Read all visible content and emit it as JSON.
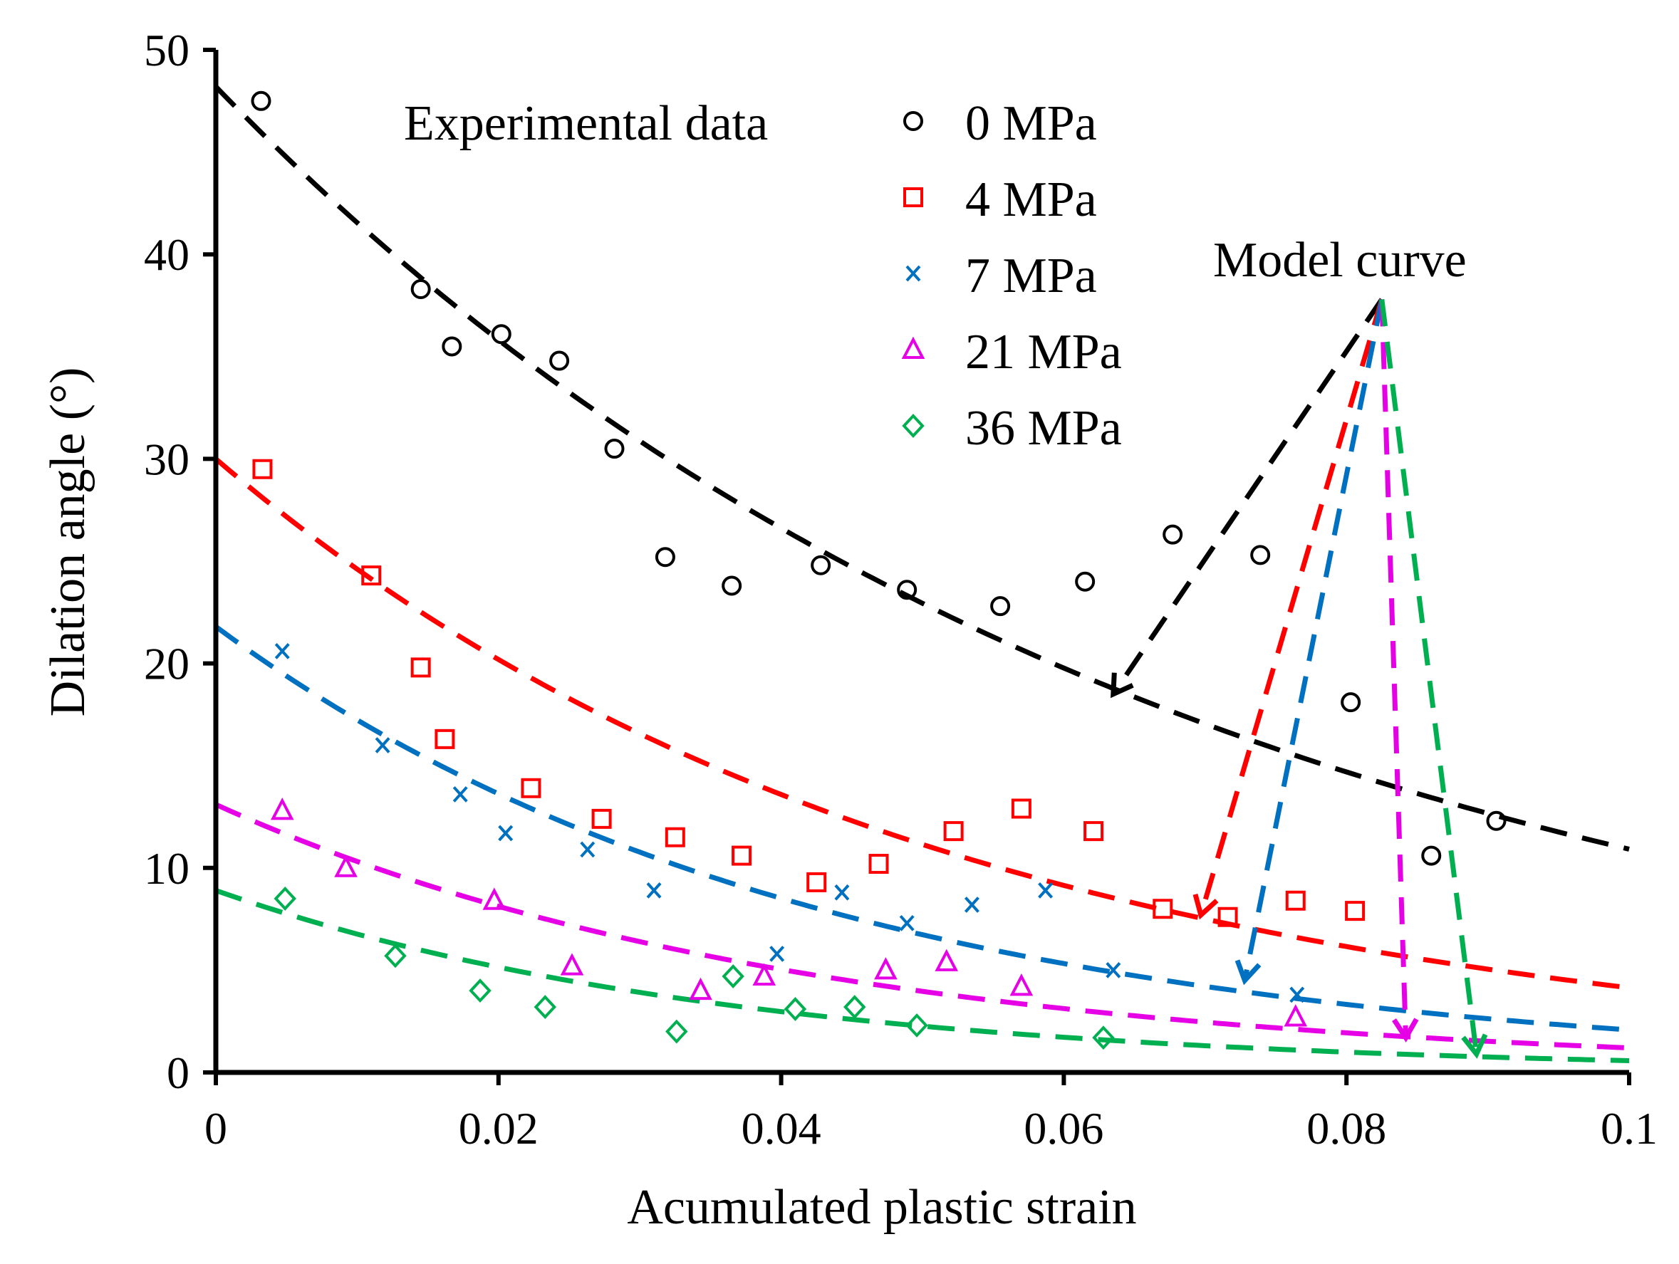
{
  "chart_data": {
    "type": "scatter",
    "title": "",
    "xlabel": "Acumulated plastic strain",
    "ylabel": "Dilation angle (°)",
    "xlim": [
      0,
      0.1
    ],
    "ylim": [
      0,
      50
    ],
    "xticks": [
      0,
      0.02,
      0.04,
      0.06,
      0.08,
      0.1
    ],
    "xtick_labels": [
      "0",
      "0.02",
      "0.04",
      "0.06",
      "0.08",
      "0.1"
    ],
    "yticks": [
      0,
      10,
      20,
      30,
      40,
      50
    ],
    "ytick_labels": [
      "0",
      "10",
      "20",
      "30",
      "40",
      "50"
    ],
    "legend_heading": "Experimental data",
    "series": [
      {
        "name": "0 MPa",
        "color": "#000000",
        "marker": "circle",
        "points": [
          [
            0.0032,
            47.5
          ],
          [
            0.0145,
            38.3
          ],
          [
            0.0167,
            35.5
          ],
          [
            0.0202,
            36.1
          ],
          [
            0.0243,
            34.8
          ],
          [
            0.0282,
            30.5
          ],
          [
            0.0318,
            25.2
          ],
          [
            0.0365,
            23.8
          ],
          [
            0.0428,
            24.8
          ],
          [
            0.0489,
            23.6
          ],
          [
            0.0555,
            22.8
          ],
          [
            0.0615,
            24.0
          ],
          [
            0.0677,
            26.3
          ],
          [
            0.0739,
            25.3
          ],
          [
            0.0803,
            18.1
          ],
          [
            0.086,
            10.6
          ],
          [
            0.0906,
            12.3
          ]
        ],
        "model": {
          "a": 48.2,
          "b": 14.85
        }
      },
      {
        "name": "4 MPa",
        "color": "#ff0000",
        "marker": "square",
        "points": [
          [
            0.0033,
            29.5
          ],
          [
            0.011,
            24.3
          ],
          [
            0.0145,
            19.8
          ],
          [
            0.0162,
            16.3
          ],
          [
            0.0223,
            13.9
          ],
          [
            0.0273,
            12.4
          ],
          [
            0.0325,
            11.5
          ],
          [
            0.0372,
            10.6
          ],
          [
            0.0425,
            9.3
          ],
          [
            0.0469,
            10.2
          ],
          [
            0.0522,
            11.8
          ],
          [
            0.057,
            12.9
          ],
          [
            0.0621,
            11.8
          ],
          [
            0.067,
            8.0
          ],
          [
            0.0716,
            7.6
          ],
          [
            0.0764,
            8.4
          ],
          [
            0.0806,
            7.9
          ]
        ],
        "model": {
          "a": 30.0,
          "b": 19.8
        }
      },
      {
        "name": "7 MPa",
        "color": "#0070c0",
        "marker": "x",
        "points": [
          [
            0.0047,
            20.6
          ],
          [
            0.0118,
            16.0
          ],
          [
            0.0173,
            13.6
          ],
          [
            0.0205,
            11.7
          ],
          [
            0.0263,
            10.9
          ],
          [
            0.031,
            8.9
          ],
          [
            0.0397,
            5.8
          ],
          [
            0.0443,
            8.8
          ],
          [
            0.0489,
            7.3
          ],
          [
            0.0535,
            8.2
          ],
          [
            0.0587,
            8.9
          ],
          [
            0.0635,
            5.0
          ],
          [
            0.0765,
            3.8
          ]
        ],
        "model": {
          "a": 21.8,
          "b": 23.5
        }
      },
      {
        "name": "21 MPa",
        "color": "#e600e6",
        "marker": "triangle",
        "points": [
          [
            0.0047,
            12.8
          ],
          [
            0.0092,
            10.0
          ],
          [
            0.0197,
            8.4
          ],
          [
            0.0252,
            5.2
          ],
          [
            0.0343,
            4.0
          ],
          [
            0.0388,
            4.7
          ],
          [
            0.0474,
            5.0
          ],
          [
            0.0517,
            5.4
          ],
          [
            0.057,
            4.2
          ],
          [
            0.0764,
            2.7
          ]
        ],
        "model": {
          "a": 13.1,
          "b": 23.9
        }
      },
      {
        "name": "36 MPa",
        "color": "#00b050",
        "marker": "diamond",
        "points": [
          [
            0.0049,
            8.5
          ],
          [
            0.0127,
            5.7
          ],
          [
            0.0187,
            4.0
          ],
          [
            0.0233,
            3.2
          ],
          [
            0.0326,
            2.0
          ],
          [
            0.0366,
            4.7
          ],
          [
            0.041,
            3.1
          ],
          [
            0.0452,
            3.2
          ],
          [
            0.0496,
            2.3
          ],
          [
            0.0628,
            1.7
          ]
        ],
        "model": {
          "a": 8.9,
          "b": 27.4
        }
      }
    ],
    "annotation": {
      "text": "Model curve",
      "source": [
        0.0825,
        37.8
      ],
      "targets": [
        {
          "series": "0 MPa",
          "color": "#000000",
          "to": [
            0.0635,
            18.5
          ]
        },
        {
          "series": "4 MPa",
          "color": "#ff0000",
          "to": [
            0.0697,
            7.7
          ]
        },
        {
          "series": "7 MPa",
          "color": "#0070c0",
          "to": [
            0.0728,
            4.5
          ]
        },
        {
          "series": "21 MPa",
          "color": "#e600e6",
          "to": [
            0.0842,
            1.7
          ]
        },
        {
          "series": "36 MPa",
          "color": "#00b050",
          "to": [
            0.0892,
            0.9
          ]
        }
      ]
    }
  }
}
